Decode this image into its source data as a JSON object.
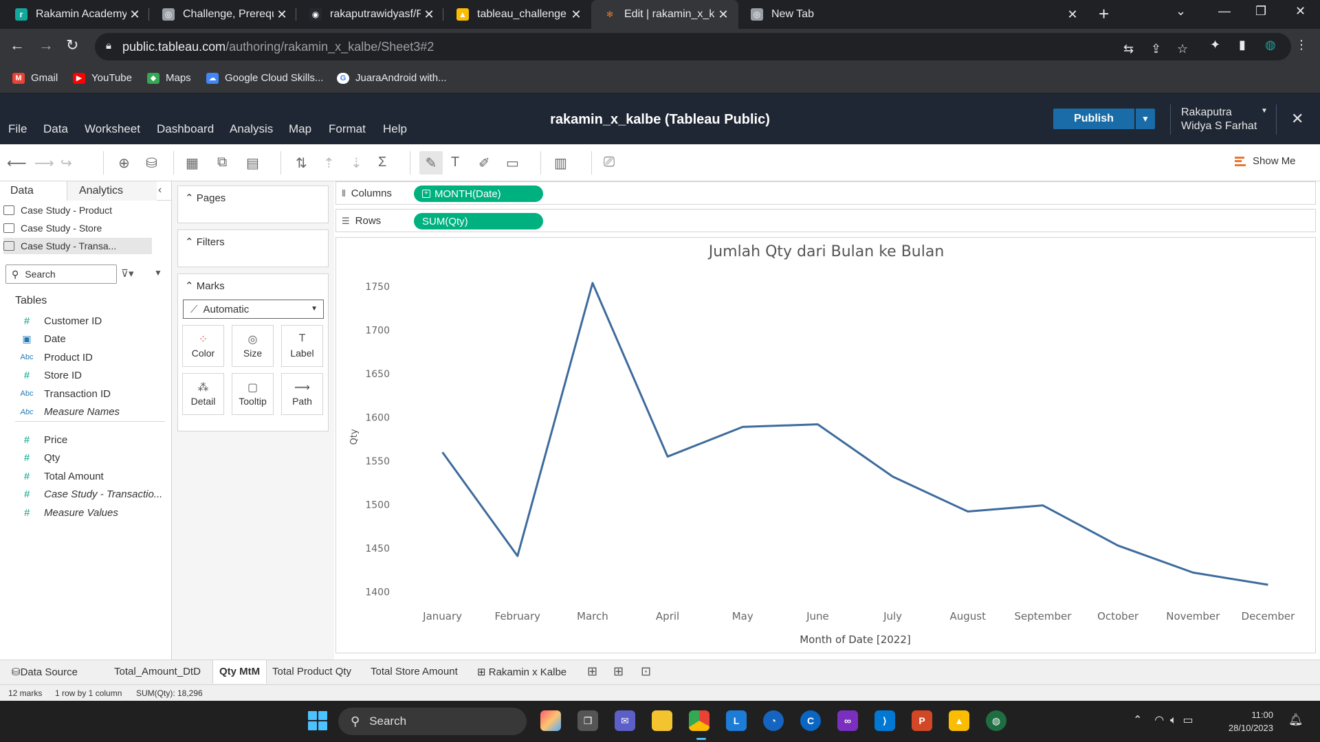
{
  "browser": {
    "tabs": [
      {
        "title": "Rakamin Academy",
        "color": "#12a89d",
        "glyph": "r"
      },
      {
        "title": "Challenge, Prerequisite, Hi",
        "color": "#9aa0a6",
        "glyph": "◎"
      },
      {
        "title": "rakaputrawidyasf/Rakamin",
        "color": "#24292f",
        "glyph": "◉"
      },
      {
        "title": "tableau_challenge - Google",
        "color": "#fbbc04",
        "glyph": "▲"
      },
      {
        "title": "Edit | rakamin_x_kalbe",
        "color": "#35363a",
        "glyph": "✻"
      },
      {
        "title": "New Tab",
        "color": "#9aa0a6",
        "glyph": "◎"
      }
    ],
    "active_tab_index": 4,
    "url_host": "public.tableau.com",
    "url_path": "/authoring/rakamin_x_kalbe/Sheet3#2",
    "bookmarks": [
      {
        "label": "Gmail",
        "color": "#ea4335",
        "glyph": "M"
      },
      {
        "label": "YouTube",
        "color": "#ff0000",
        "glyph": "▶"
      },
      {
        "label": "Maps",
        "color": "#34a853",
        "glyph": "◆"
      },
      {
        "label": "Google Cloud Skills...",
        "color": "#4285f4",
        "glyph": "☁"
      },
      {
        "label": "JuaraAndroid with...",
        "color": "#ffffff",
        "glyph": "G"
      }
    ]
  },
  "tableau": {
    "menu": [
      "File",
      "Data",
      "Worksheet",
      "Dashboard",
      "Analysis",
      "Map",
      "Format",
      "Help"
    ],
    "workbook_title": "rakamin_x_kalbe (Tableau Public)",
    "publish_label": "Publish",
    "user_line1": "Rakaputra",
    "user_line2": "Widya S Farhat",
    "show_me_label": "Show Me",
    "data_pane": {
      "tab_data": "Data",
      "tab_analytics": "Analytics",
      "datasources": [
        "Case Study - Product",
        "Case Study - Store",
        "Case Study - Transa..."
      ],
      "search_placeholder": "Search",
      "tables_header": "Tables",
      "dimensions": [
        {
          "label": "Customer ID",
          "type": "#",
          "italic": false
        },
        {
          "label": "Date",
          "type": "date",
          "italic": false
        },
        {
          "label": "Product ID",
          "type": "Abc",
          "italic": false
        },
        {
          "label": "Store ID",
          "type": "#",
          "italic": false
        },
        {
          "label": "Transaction ID",
          "type": "Abc",
          "italic": false
        },
        {
          "label": "Measure Names",
          "type": "Abc",
          "italic": true
        }
      ],
      "measures": [
        {
          "label": "Price",
          "type": "#",
          "italic": false
        },
        {
          "label": "Qty",
          "type": "#",
          "italic": false
        },
        {
          "label": "Total Amount",
          "type": "#",
          "italic": false
        },
        {
          "label": "Case Study - Transactio...",
          "type": "#",
          "italic": true
        },
        {
          "label": "Measure Values",
          "type": "#",
          "italic": true
        }
      ]
    },
    "cards": {
      "pages": "Pages",
      "filters": "Filters",
      "marks": "Marks",
      "mark_type": "Automatic",
      "mark_buttons": [
        "Color",
        "Size",
        "Label",
        "Detail",
        "Tooltip",
        "Path"
      ]
    },
    "shelves": {
      "columns_label": "Columns",
      "columns_pill": "MONTH(Date)",
      "rows_label": "Rows",
      "rows_pill": "SUM(Qty)"
    },
    "sheet_tabs": [
      "Data Source",
      "Total_Amount_DtD",
      "Qty MtM",
      "Total Product Qty",
      "Total Store Amount",
      "Rakamin x Kalbe"
    ],
    "active_sheet_index": 2,
    "status": {
      "marks": "12 marks",
      "rows_cols": "1 row by 1 column",
      "sum": "SUM(Qty): 18,296"
    }
  },
  "chart_data": {
    "type": "line",
    "title": "Jumlah Qty dari Bulan ke Bulan",
    "xlabel": "Month of Date [2022]",
    "ylabel": "Qty",
    "categories": [
      "January",
      "February",
      "March",
      "April",
      "May",
      "June",
      "July",
      "August",
      "September",
      "October",
      "November",
      "December"
    ],
    "values": [
      1560,
      1441,
      1754,
      1555,
      1589,
      1592,
      1532,
      1492,
      1499,
      1453,
      1422,
      1408
    ],
    "ylim": [
      1390,
      1765
    ],
    "yticks": [
      1400,
      1450,
      1500,
      1550,
      1600,
      1650,
      1700,
      1750
    ],
    "line_color": "#3d6b9c",
    "grid": false
  },
  "taskbar": {
    "search_label": "Search",
    "time": "11:00",
    "date": "28/10/2023"
  }
}
